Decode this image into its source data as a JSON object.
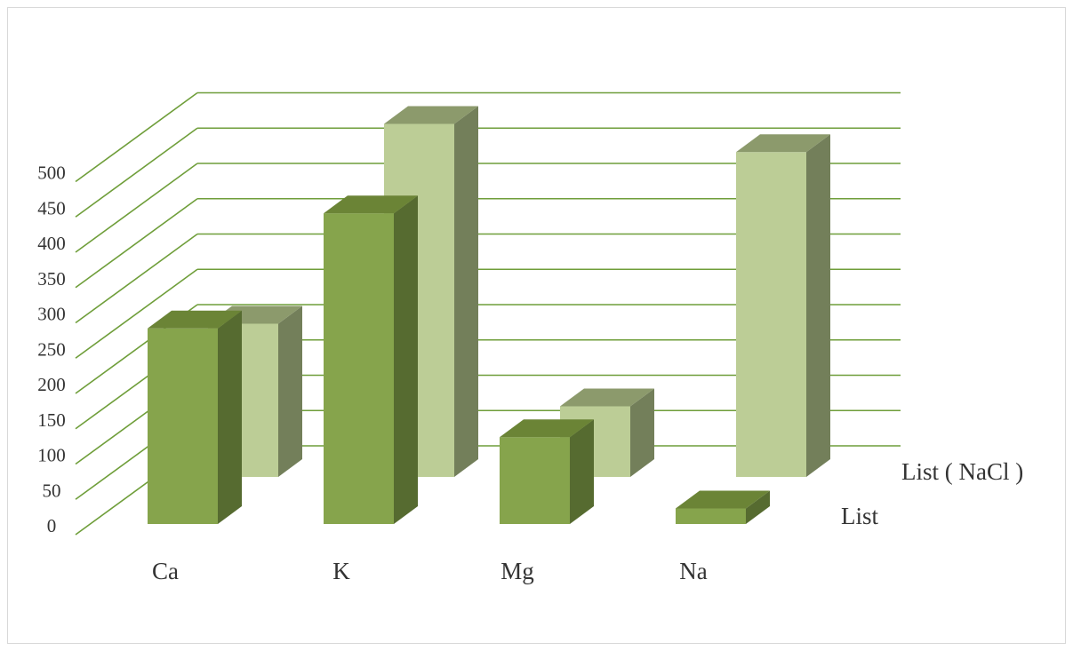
{
  "chart_data": {
    "type": "bar",
    "style": "3d-clustered-depth",
    "categories": [
      "Ca",
      "K",
      "Mg",
      "Na"
    ],
    "series": [
      {
        "name": "List",
        "values": [
          277,
          440,
          123,
          22
        ]
      },
      {
        "name": "List ( NaCl )",
        "values": [
          217,
          500,
          100,
          460
        ]
      }
    ],
    "yticks": [
      "0",
      "50",
      "100",
      "150",
      "200",
      "250",
      "300",
      "350",
      "400",
      "450",
      "500"
    ],
    "ylim": [
      0,
      500
    ],
    "grid": true,
    "legend": "none",
    "colors": {
      "list_front": "#86a44c",
      "list_side": "#566b30",
      "list_top": "#6b8436",
      "nacl_front": "#bccd96",
      "nacl_side": "#737f5a",
      "nacl_top": "#8c9a6c",
      "grid": "#6f9e3a"
    }
  }
}
